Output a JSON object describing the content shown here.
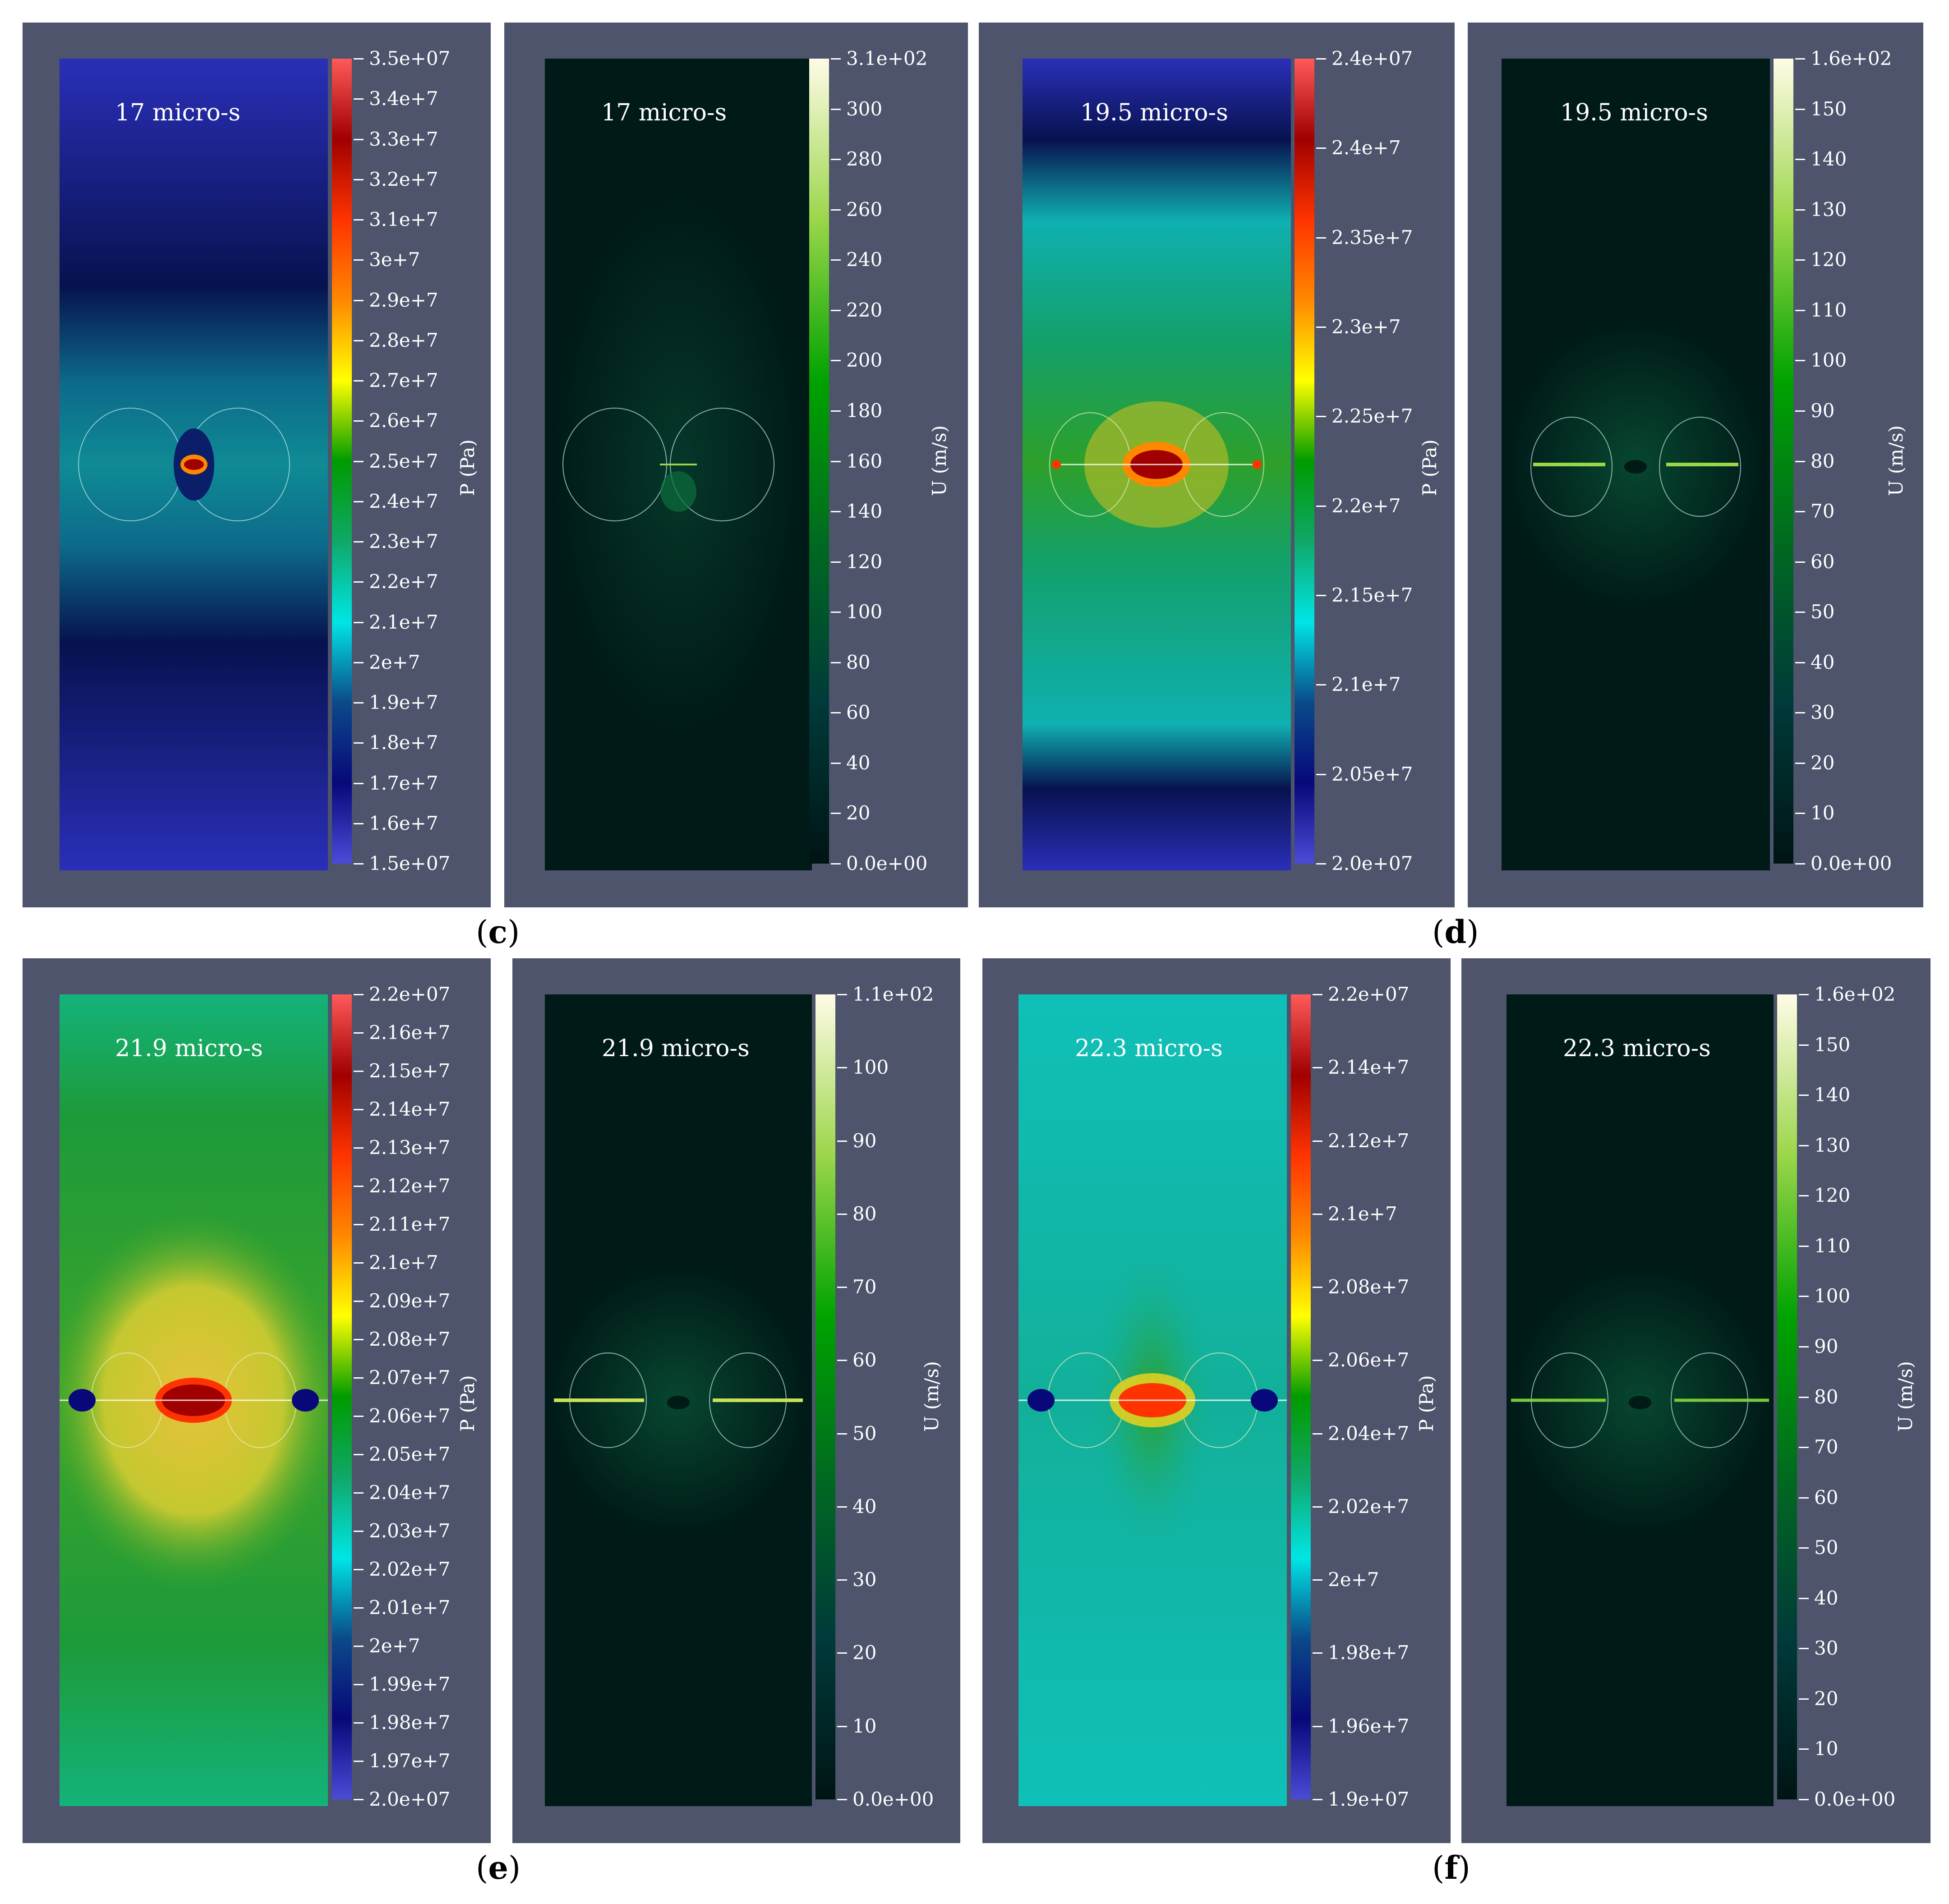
{
  "captions": {
    "c": "c",
    "d": "d",
    "e": "e",
    "f": "f"
  },
  "time_labels": [
    "17 micro-s",
    "17 micro-s",
    "19.5 micro-s",
    "19.5 micro-s",
    "21.9 micro-s",
    "21.9 micro-s",
    "22.3 micro-s",
    "22.3 micro-s"
  ],
  "colorbars": [
    {
      "title": "P (Pa)",
      "top": "3.5e+07",
      "bottom": "1.5e+07",
      "ticks": [
        "3.4e+7",
        "3.3e+7",
        "3.2e+7",
        "3.1e+7",
        "3e+7",
        "2.9e+7",
        "2.8e+7",
        "2.7e+7",
        "2.6e+7",
        "2.5e+7",
        "2.4e+7",
        "2.3e+7",
        "2.2e+7",
        "2.1e+7",
        "2e+7",
        "1.9e+7",
        "1.8e+7",
        "1.7e+7",
        "1.6e+7"
      ]
    },
    {
      "title": "U (m/s)",
      "top": "3.1e+02",
      "bottom": "0.0e+00",
      "ticks": [
        "300",
        "280",
        "260",
        "240",
        "220",
        "200",
        "180",
        "160",
        "140",
        "120",
        "100",
        "80",
        "60",
        "40",
        "20"
      ]
    },
    {
      "title": "P (Pa)",
      "top": "2.4e+07",
      "bottom": "2.0e+07",
      "ticks": [
        "2.4e+7",
        "2.35e+7",
        "2.3e+7",
        "2.25e+7",
        "2.2e+7",
        "2.15e+7",
        "2.1e+7",
        "2.05e+7"
      ]
    },
    {
      "title": "U (m/s)",
      "top": "1.6e+02",
      "bottom": "0.0e+00",
      "ticks": [
        "150",
        "140",
        "130",
        "120",
        "110",
        "100",
        "90",
        "80",
        "70",
        "60",
        "50",
        "40",
        "30",
        "20",
        "10"
      ]
    },
    {
      "title": "P (Pa)",
      "top": "2.2e+07",
      "bottom": "2.0e+07",
      "ticks": [
        "2.16e+7",
        "2.15e+7",
        "2.14e+7",
        "2.13e+7",
        "2.12e+7",
        "2.11e+7",
        "2.1e+7",
        "2.09e+7",
        "2.08e+7",
        "2.07e+7",
        "2.06e+7",
        "2.05e+7",
        "2.04e+7",
        "2.03e+7",
        "2.02e+7",
        "2.01e+7",
        "2e+7",
        "1.99e+7",
        "1.98e+7",
        "1.97e+7"
      ]
    },
    {
      "title": "U (m/s)",
      "top": "1.1e+02",
      "bottom": "0.0e+00",
      "ticks": [
        "100",
        "90",
        "80",
        "70",
        "60",
        "50",
        "40",
        "30",
        "20",
        "10"
      ]
    },
    {
      "title": "P (Pa)",
      "top": "2.2e+07",
      "bottom": "1.9e+07",
      "ticks": [
        "2.14e+7",
        "2.12e+7",
        "2.1e+7",
        "2.08e+7",
        "2.06e+7",
        "2.04e+7",
        "2.02e+7",
        "2e+7",
        "1.98e+7",
        "1.96e+7"
      ]
    },
    {
      "title": "U (m/s)",
      "top": "1.6e+02",
      "bottom": "0.0e+00",
      "ticks": [
        "150",
        "140",
        "130",
        "120",
        "110",
        "100",
        "90",
        "80",
        "70",
        "60",
        "50",
        "40",
        "30",
        "20",
        "10"
      ]
    }
  ],
  "colors": {
    "panel_bg": "#4d546b",
    "rainbow": [
      "#4b4bd8",
      "#08087a",
      "#0a4a8a",
      "#00e5e5",
      "#0fa868",
      "#009b00",
      "#ffff00",
      "#ff8800",
      "#ff3300",
      "#a00000",
      "#ff5a5a"
    ],
    "velocity": [
      "#001414",
      "#003a3a",
      "#006a20",
      "#00a300",
      "#9bd64a",
      "#fffbe6"
    ]
  }
}
